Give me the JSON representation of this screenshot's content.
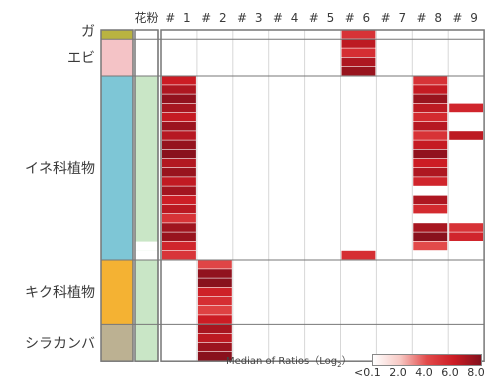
{
  "chart_data": {
    "type": "heatmap",
    "title": "",
    "columns": [
      "#1",
      "#2",
      "#3",
      "#4",
      "#5",
      "#6",
      "#7",
      "#8",
      "#9"
    ],
    "extra_column_label": "花粉",
    "groups": [
      {
        "label": "ガ",
        "color": "#b9b341",
        "rows": [
          0,
          0
        ],
        "pollen_color": null
      },
      {
        "label": "エビ",
        "color": "#f4c3c6",
        "rows": [
          1,
          4
        ],
        "pollen_color": null
      },
      {
        "label": "イネ科植物",
        "color": "#7ec6d6",
        "rows": [
          5,
          24
        ],
        "pollen_color": "#c9e6c6"
      },
      {
        "label": "キク科植物",
        "color": "#f4b233",
        "rows": [
          25,
          31
        ],
        "pollen_color": "#c9e6c6"
      },
      {
        "label": "シラカンバ",
        "color": "#bcb192",
        "rows": [
          32,
          35
        ],
        "pollen_color": "#c9e6c6"
      }
    ],
    "pollen_blank_rows": [
      23,
      24
    ],
    "row_count": 36,
    "cells": {
      "#1": [
        [
          5,
          6.0
        ],
        [
          6,
          6.8
        ],
        [
          7,
          7.6
        ],
        [
          8,
          7.0
        ],
        [
          9,
          6.2
        ],
        [
          10,
          7.3
        ],
        [
          11,
          6.6
        ],
        [
          12,
          7.5
        ],
        [
          13,
          7.8
        ],
        [
          14,
          6.7
        ],
        [
          15,
          7.4
        ],
        [
          16,
          6.3
        ],
        [
          17,
          7.1
        ],
        [
          18,
          5.9
        ],
        [
          19,
          6.5
        ],
        [
          20,
          5.0
        ],
        [
          21,
          7.2
        ],
        [
          22,
          7.4
        ],
        [
          23,
          5.6
        ],
        [
          24,
          4.9
        ]
      ],
      "#2": [
        [
          25,
          4.2
        ],
        [
          26,
          7.6
        ],
        [
          27,
          7.8
        ],
        [
          28,
          5.8
        ],
        [
          29,
          5.2
        ],
        [
          30,
          4.4
        ],
        [
          31,
          6.0
        ],
        [
          32,
          7.0
        ],
        [
          33,
          6.4
        ],
        [
          34,
          7.3
        ],
        [
          35,
          7.8
        ]
      ],
      "#6": [
        [
          0,
          5.0
        ],
        [
          1,
          6.4
        ],
        [
          2,
          5.2
        ],
        [
          3,
          6.8
        ],
        [
          4,
          7.4
        ],
        [
          24,
          5.2
        ]
      ],
      "#8": [
        [
          5,
          5.0
        ],
        [
          6,
          6.2
        ],
        [
          7,
          7.4
        ],
        [
          8,
          6.4
        ],
        [
          9,
          5.4
        ],
        [
          10,
          6.6
        ],
        [
          11,
          5.0
        ],
        [
          12,
          6.2
        ],
        [
          13,
          7.6
        ],
        [
          14,
          6.0
        ],
        [
          15,
          6.8
        ],
        [
          16,
          5.6
        ],
        [
          18,
          6.8
        ],
        [
          19,
          5.4
        ],
        [
          21,
          7.0
        ],
        [
          22,
          7.8
        ],
        [
          23,
          4.0
        ]
      ],
      "#9": [
        [
          8,
          5.6
        ],
        [
          11,
          6.4
        ],
        [
          21,
          5.0
        ],
        [
          22,
          5.6
        ]
      ]
    },
    "scale": {
      "label": "Median of Ratios（Log",
      "label_sub": "2",
      "label_end": "）",
      "min": 0,
      "max": 8.0,
      "colors": [
        "#ffffff",
        "#f7c9c4",
        "#e24a4a",
        "#cc1c24",
        "#82101c"
      ],
      "ticks": [
        "<0.1",
        "2.0",
        "4.0",
        "6.0",
        "8.0"
      ]
    }
  }
}
